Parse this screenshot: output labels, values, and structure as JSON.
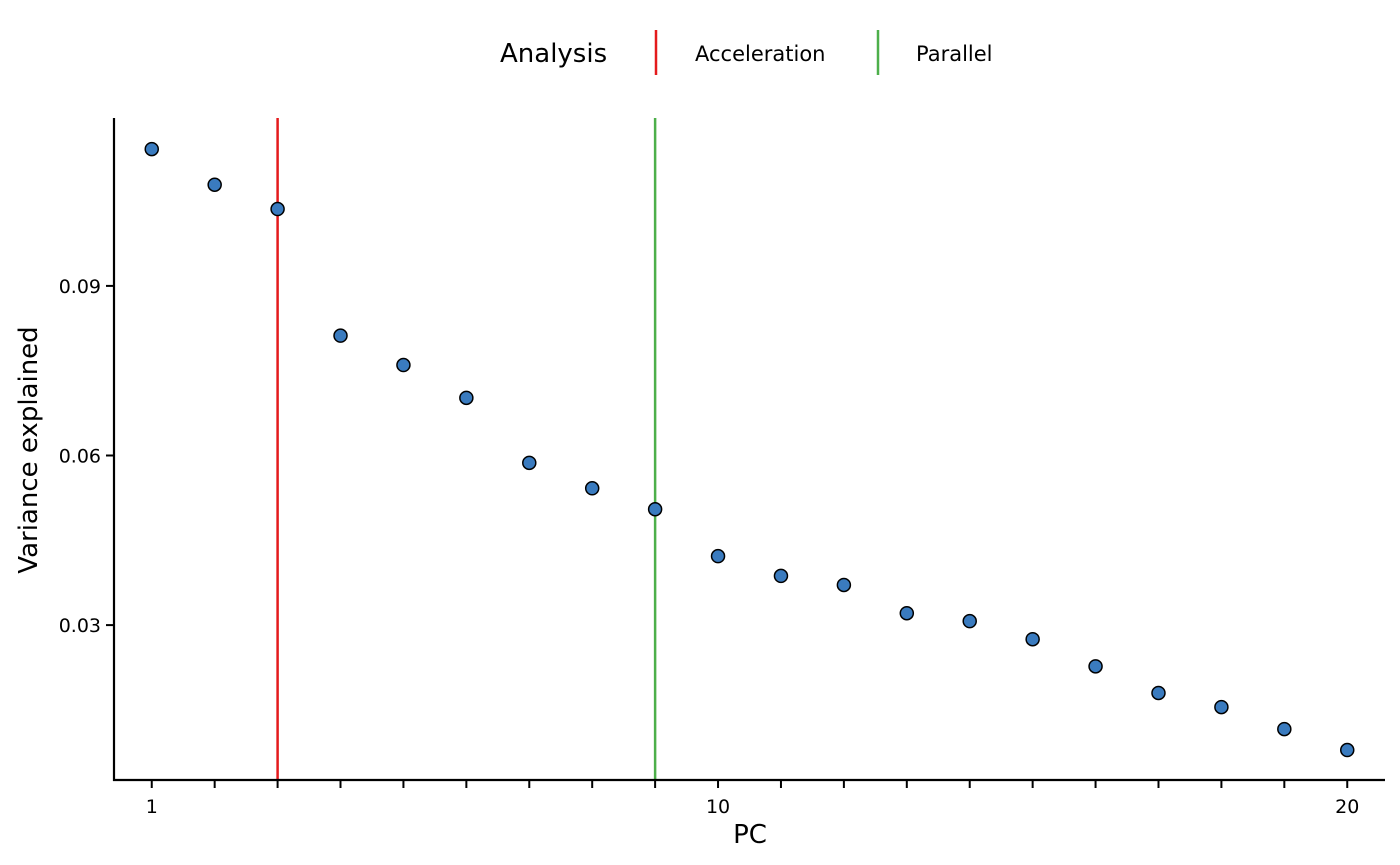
{
  "chart_data": {
    "type": "scatter",
    "title": "",
    "xlabel": "PC",
    "ylabel": "Variance explained",
    "xlim": [
      0.4,
      20.6
    ],
    "ylim": [
      0.0026,
      0.1197
    ],
    "x_ticks": [
      1,
      2,
      3,
      4,
      5,
      6,
      7,
      8,
      9,
      10,
      11,
      12,
      13,
      14,
      15,
      16,
      17,
      18,
      19,
      20
    ],
    "x_tick_labels": {
      "1": "1",
      "10": "10",
      "20": "20"
    },
    "y_ticks": [
      0.03,
      0.06,
      0.09
    ],
    "y_tick_labels": [
      "0.03",
      "0.06",
      "0.09"
    ],
    "grid": false,
    "points": {
      "x": [
        1,
        2,
        3,
        4,
        5,
        6,
        7,
        8,
        9,
        10,
        11,
        12,
        13,
        14,
        15,
        16,
        17,
        18,
        19,
        20
      ],
      "y": [
        0.1142,
        0.1079,
        0.1036,
        0.0812,
        0.076,
        0.0702,
        0.0587,
        0.0542,
        0.0505,
        0.0422,
        0.0387,
        0.0371,
        0.0321,
        0.0307,
        0.0275,
        0.0227,
        0.018,
        0.0155,
        0.0116,
        0.0079
      ],
      "fill": "#3a7bbf",
      "stroke": "#000000"
    },
    "legend": {
      "title": "Analysis",
      "placement": "top",
      "entries": [
        {
          "label": "Acceleration",
          "color": "#e41a1c"
        },
        {
          "label": "Parallel",
          "color": "#4daf4a"
        }
      ]
    },
    "vlines": [
      {
        "name": "Acceleration",
        "x": 3,
        "color": "#e41a1c"
      },
      {
        "name": "Parallel",
        "x": 9,
        "color": "#4daf4a"
      }
    ]
  }
}
